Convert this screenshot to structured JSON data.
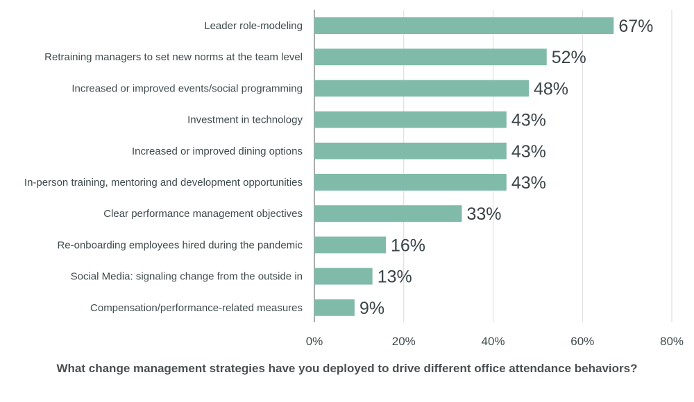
{
  "chart_data": {
    "type": "bar",
    "orientation": "horizontal",
    "title": "What change management strategies have you deployed to drive different office attendance behaviors?",
    "categories": [
      "Leader role-modeling",
      "Retraining managers to set new norms at the team level",
      "Increased or improved events/social programming",
      "Investment in technology",
      "Increased or improved dining options",
      "In-person training, mentoring and development opportunities",
      "Clear performance management objectives",
      "Re-onboarding employees hired during the pandemic",
      "Social Media: signaling change from the outside in",
      "Compensation/performance-related measures"
    ],
    "values": [
      67,
      52,
      48,
      43,
      43,
      43,
      33,
      16,
      13,
      9
    ],
    "value_labels": [
      "67%",
      "52%",
      "48%",
      "43%",
      "43%",
      "43%",
      "33%",
      "16%",
      "13%",
      "9%"
    ],
    "xlim": [
      0,
      80
    ],
    "xticks": [
      0,
      20,
      40,
      60,
      80
    ],
    "xtick_labels": [
      "0%",
      "20%",
      "40%",
      "60%",
      "80%"
    ],
    "xlabel": "",
    "ylabel": "",
    "grid": "vertical",
    "bar_color": "#80bba9",
    "grid_color": "#d9d9d9",
    "axis_color": "#6f7679"
  }
}
